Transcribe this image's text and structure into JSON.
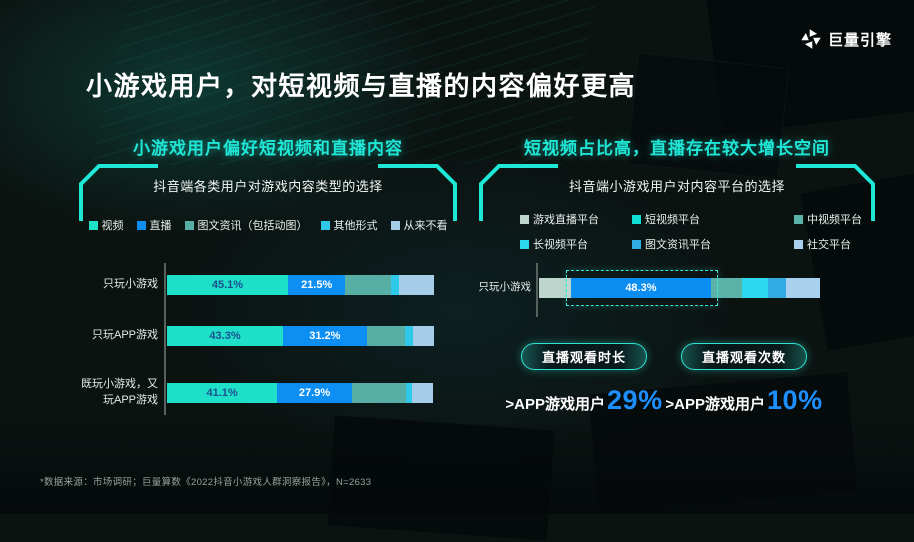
{
  "brand": {
    "name": "巨量引擎",
    "icon": "pinwheel-logo-icon"
  },
  "title": "小游戏用户，对短视频与直播的内容偏好更高",
  "footnote": "*数据来源：市场调研；巨量算数《2022抖音小游戏人群洞察报告》，N=2633",
  "colors": {
    "accent_cyan": "#1fe7d6",
    "stat_blue": "#1e8fff",
    "axis_gray": "#56625e"
  },
  "panels": {
    "left": {
      "header": "小游戏用户偏好短视频和直播内容",
      "chart_title": "抖音端各类用户对游戏内容类型的选择"
    },
    "right": {
      "header": "短视频占比高，直播存在较大增长空间",
      "chart_title": "抖音端小游戏用户对内容平台的选择"
    }
  },
  "stats": [
    {
      "badge": "直播观看时长",
      "prefix": ">APP游戏用户",
      "value": "29%"
    },
    {
      "badge": "直播观看次数",
      "prefix": ">APP游戏用户",
      "value": "10%"
    }
  ],
  "chart_data": [
    {
      "type": "bar",
      "orientation": "horizontal-stacked",
      "title": "抖音端各类用户对游戏内容类型的选择",
      "xlim": [
        0,
        100
      ],
      "grid": false,
      "legend_position": "top",
      "categories": [
        "只玩小游戏",
        "只玩APP游戏",
        "既玩小游戏，又玩APP游戏"
      ],
      "series": [
        {
          "name": "视频",
          "color": "#1ee0c9",
          "label_color": "#1d4f8f",
          "values": [
            45.1,
            43.3,
            41.1
          ],
          "labels": [
            "45.1%",
            "43.3%",
            "41.1%"
          ]
        },
        {
          "name": "直播",
          "color": "#0d8ef2",
          "label_color": "#ffffff",
          "values": [
            21.5,
            31.2,
            27.9
          ],
          "labels": [
            "21.5%",
            "31.2%",
            "27.9%"
          ]
        },
        {
          "name": "图文资讯（包括动图）",
          "color": "#57aea4",
          "values": [
            17.0,
            14.4,
            20.0
          ],
          "estimated": true
        },
        {
          "name": "其他形式",
          "color": "#2ec9e8",
          "values": [
            3.0,
            2.9,
            2.5
          ],
          "estimated": true
        },
        {
          "name": "从来不看",
          "color": "#a5cde8",
          "values": [
            12.9,
            8.0,
            7.9
          ],
          "estimated": true
        }
      ]
    },
    {
      "type": "bar",
      "orientation": "horizontal-stacked",
      "title": "抖音端小游戏用户对内容平台的选择",
      "xlim": [
        0,
        100
      ],
      "grid": false,
      "legend_position": "top",
      "categories": [
        "只玩小游戏"
      ],
      "series": [
        {
          "name": "游戏直播平台",
          "color": "#bcd5cd",
          "legend_color": "#bcd5cd",
          "values": [
            11.0
          ],
          "estimated": true
        },
        {
          "name": "短视频平台",
          "color": "#0b8df2",
          "legend_color": "#0fdfd4",
          "label_color": "#ffffff",
          "values": [
            48.3
          ],
          "labels": [
            "48.3%"
          ],
          "highlighted": true
        },
        {
          "name": "中视频平台",
          "color": "#5bb2a8",
          "legend_color": "#5bb2a8",
          "values": [
            10.7
          ],
          "estimated": true
        },
        {
          "name": "长视频平台",
          "color": "#2bd8f0",
          "legend_color": "#2bd8f0",
          "values": [
            9.0
          ],
          "estimated": true
        },
        {
          "name": "图文资讯平台",
          "color": "#33ace4",
          "legend_color": "#33ace4",
          "values": [
            6.2
          ],
          "estimated": true
        },
        {
          "name": "社交平台",
          "color": "#a9d0ec",
          "legend_color": "#a9d0ec",
          "values": [
            11.7
          ],
          "estimated": true
        }
      ]
    }
  ]
}
